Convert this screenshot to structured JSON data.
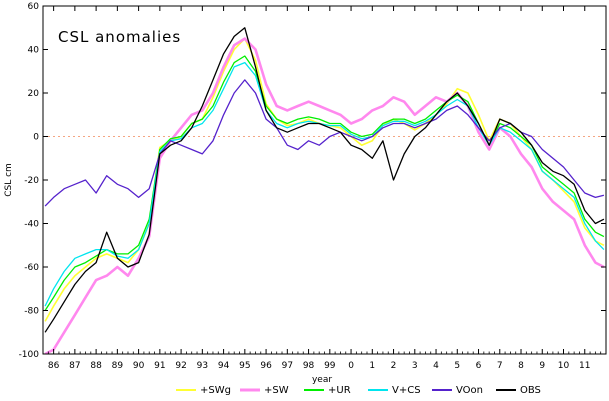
{
  "chart_data": {
    "type": "line",
    "title": "CSL anomalies",
    "xlabel": "year",
    "ylabel": "CSL cm",
    "xlim": [
      1985.5,
      2012.0
    ],
    "ylim": [
      -100,
      60
    ],
    "y_ticks": [
      -100,
      -80,
      -60,
      -40,
      -20,
      0,
      20,
      40,
      60
    ],
    "x_tick_values": [
      1986,
      1987,
      1988,
      1989,
      1990,
      1991,
      1992,
      1993,
      1994,
      1995,
      1996,
      1997,
      1998,
      1999,
      2000,
      2001,
      2002,
      2003,
      2004,
      2005,
      2006,
      2007,
      2008,
      2009,
      2010,
      2011
    ],
    "x_tick_labels": [
      "86",
      "87",
      "88",
      "89",
      "90",
      "91",
      "92",
      "93",
      "94",
      "95",
      "96",
      "97",
      "98",
      "99",
      "0",
      "1",
      "2",
      "3",
      "4",
      "5",
      "6",
      "7",
      "8",
      "9",
      "10",
      "11"
    ],
    "zero_line": {
      "y": 0,
      "color": "#f4a582",
      "style": "dotted"
    },
    "legend_position": "bottom",
    "series": [
      {
        "name": "+SWg",
        "color": "#ffff33",
        "x": [
          1985.6,
          1986,
          1986.5,
          1987,
          1987.5,
          1988,
          1988.5,
          1989,
          1989.5,
          1990,
          1990.5,
          1991,
          1991.5,
          1992,
          1992.5,
          1993,
          1993.5,
          1994,
          1994.5,
          1995,
          1995.5,
          1996,
          1996.5,
          1997,
          1997.5,
          1998,
          1998.5,
          1999,
          1999.5,
          2000,
          2000.5,
          2001,
          2001.5,
          2002,
          2002.5,
          2003,
          2003.5,
          2004,
          2004.5,
          2005,
          2005.5,
          2006,
          2006.5,
          2007,
          2007.5,
          2008,
          2008.5,
          2009,
          2009.5,
          2010,
          2010.5,
          2011,
          2011.5,
          2011.9
        ],
        "y": [
          -85,
          -78,
          -70,
          -64,
          -60,
          -56,
          -54,
          -56,
          -58,
          -52,
          -40,
          -5,
          -2,
          0,
          6,
          8,
          18,
          30,
          40,
          45,
          35,
          15,
          8,
          5,
          6,
          8,
          6,
          5,
          4,
          0,
          -4,
          -2,
          5,
          8,
          6,
          3,
          6,
          10,
          15,
          22,
          20,
          10,
          -2,
          8,
          6,
          0,
          -6,
          -16,
          -20,
          -25,
          -30,
          -42,
          -48,
          -50
        ]
      },
      {
        "name": "+SW",
        "color": "#ff88ee",
        "x": [
          1985.6,
          1986,
          1986.5,
          1987,
          1987.5,
          1988,
          1988.5,
          1989,
          1989.5,
          1990,
          1990.5,
          1991,
          1991.5,
          1992,
          1992.5,
          1993,
          1993.5,
          1994,
          1994.5,
          1995,
          1995.5,
          1996,
          1996.5,
          1997,
          1997.5,
          1998,
          1998.5,
          1999,
          1999.5,
          2000,
          2000.5,
          2001,
          2001.5,
          2002,
          2002.5,
          2003,
          2003.5,
          2004,
          2004.5,
          2005,
          2005.5,
          2006,
          2006.5,
          2007,
          2007.5,
          2008,
          2008.5,
          2009,
          2009.5,
          2010,
          2010.5,
          2011,
          2011.5,
          2011.9
        ],
        "y": [
          -100,
          -98,
          -90,
          -82,
          -74,
          -66,
          -64,
          -60,
          -64,
          -56,
          -46,
          -10,
          -2,
          4,
          10,
          12,
          20,
          32,
          42,
          45,
          40,
          24,
          14,
          12,
          14,
          16,
          14,
          12,
          10,
          6,
          8,
          12,
          14,
          18,
          16,
          10,
          14,
          18,
          16,
          20,
          14,
          2,
          -6,
          4,
          0,
          -8,
          -14,
          -24,
          -30,
          -34,
          -38,
          -50,
          -58,
          -60
        ]
      },
      {
        "name": "+UR",
        "color": "#00ee00",
        "x": [
          1985.6,
          1986,
          1986.5,
          1987,
          1987.5,
          1988,
          1988.5,
          1989,
          1989.5,
          1990,
          1990.5,
          1991,
          1991.5,
          1992,
          1992.5,
          1993,
          1993.5,
          1994,
          1994.5,
          1995,
          1995.5,
          1996,
          1996.5,
          1997,
          1997.5,
          1998,
          1998.5,
          1999,
          1999.5,
          2000,
          2000.5,
          2001,
          2001.5,
          2002,
          2002.5,
          2003,
          2003.5,
          2004,
          2004.5,
          2005,
          2005.5,
          2006,
          2006.5,
          2007,
          2007.5,
          2008,
          2008.5,
          2009,
          2009.5,
          2010,
          2010.5,
          2011,
          2011.5,
          2011.9
        ],
        "y": [
          -80,
          -74,
          -66,
          -60,
          -58,
          -55,
          -52,
          -54,
          -54,
          -50,
          -38,
          -6,
          -1,
          0,
          6,
          8,
          14,
          25,
          34,
          37,
          30,
          14,
          8,
          6,
          8,
          9,
          8,
          6,
          6,
          2,
          0,
          1,
          6,
          8,
          8,
          6,
          8,
          12,
          16,
          19,
          16,
          6,
          -4,
          6,
          4,
          0,
          -4,
          -14,
          -18,
          -22,
          -26,
          -38,
          -44,
          -46
        ]
      },
      {
        "name": "V+CS",
        "color": "#00e5ee",
        "x": [
          1985.6,
          1986,
          1986.5,
          1987,
          1987.5,
          1988,
          1988.5,
          1989,
          1989.5,
          1990,
          1990.5,
          1991,
          1991.5,
          1992,
          1992.5,
          1993,
          1993.5,
          1994,
          1994.5,
          1995,
          1995.5,
          1996,
          1996.5,
          1997,
          1997.5,
          1998,
          1998.5,
          1999,
          1999.5,
          2000,
          2000.5,
          2001,
          2001.5,
          2002,
          2002.5,
          2003,
          2003.5,
          2004,
          2004.5,
          2005,
          2005.5,
          2006,
          2006.5,
          2007,
          2007.5,
          2008,
          2008.5,
          2009,
          2009.5,
          2010,
          2010.5,
          2011,
          2011.5,
          2011.9
        ],
        "y": [
          -78,
          -70,
          -62,
          -56,
          -54,
          -52,
          -52,
          -55,
          -56,
          -52,
          -40,
          -7,
          -2,
          -1,
          4,
          6,
          12,
          22,
          32,
          34,
          28,
          12,
          6,
          4,
          6,
          7,
          6,
          5,
          5,
          1,
          -1,
          0,
          5,
          7,
          7,
          5,
          7,
          10,
          14,
          17,
          14,
          4,
          -4,
          4,
          2,
          -2,
          -6,
          -16,
          -20,
          -24,
          -28,
          -40,
          -48,
          -52
        ]
      },
      {
        "name": "VOon",
        "color": "#5522cc",
        "x": [
          1985.6,
          1986,
          1986.5,
          1987,
          1987.5,
          1988,
          1988.5,
          1989,
          1989.5,
          1990,
          1990.5,
          1991,
          1991.5,
          1992,
          1992.5,
          1993,
          1993.5,
          1994,
          1994.5,
          1995,
          1995.5,
          1996,
          1996.5,
          1997,
          1997.5,
          1998,
          1998.5,
          1999,
          1999.5,
          2000,
          2000.5,
          2001,
          2001.5,
          2002,
          2002.5,
          2003,
          2003.5,
          2004,
          2004.5,
          2005,
          2005.5,
          2006,
          2006.5,
          2007,
          2007.5,
          2008,
          2008.5,
          2009,
          2009.5,
          2010,
          2010.5,
          2011,
          2011.5,
          2011.9
        ],
        "y": [
          -32,
          -28,
          -24,
          -22,
          -20,
          -26,
          -18,
          -22,
          -24,
          -28,
          -24,
          -8,
          -2,
          -4,
          -6,
          -8,
          -2,
          10,
          20,
          26,
          20,
          8,
          4,
          -4,
          -6,
          -2,
          -4,
          0,
          2,
          0,
          -2,
          0,
          4,
          6,
          6,
          4,
          6,
          8,
          12,
          14,
          10,
          4,
          -2,
          4,
          6,
          2,
          0,
          -6,
          -10,
          -14,
          -20,
          -26,
          -28,
          -27
        ]
      },
      {
        "name": "OBS",
        "color": "#000000",
        "x": [
          1985.6,
          1986,
          1986.5,
          1987,
          1987.5,
          1988,
          1988.5,
          1989,
          1989.5,
          1990,
          1990.5,
          1991,
          1991.5,
          1992,
          1992.5,
          1993,
          1993.5,
          1994,
          1994.5,
          1995,
          1995.5,
          1996,
          1996.5,
          1997,
          1997.5,
          1998,
          1998.5,
          1999,
          1999.5,
          2000,
          2000.5,
          2001,
          2001.5,
          2002,
          2002.5,
          2003,
          2003.5,
          2004,
          2004.5,
          2005,
          2005.5,
          2006,
          2006.5,
          2007,
          2007.5,
          2008,
          2008.5,
          2009,
          2009.5,
          2010,
          2010.5,
          2011,
          2011.5,
          2011.9
        ],
        "y": [
          -90,
          -84,
          -76,
          -68,
          -62,
          -58,
          -44,
          -56,
          -60,
          -58,
          -45,
          -8,
          -4,
          -2,
          4,
          14,
          26,
          38,
          46,
          50,
          32,
          12,
          4,
          2,
          4,
          6,
          6,
          4,
          2,
          -4,
          -6,
          -10,
          -2,
          -20,
          -8,
          0,
          4,
          10,
          16,
          20,
          14,
          6,
          -4,
          8,
          6,
          2,
          -4,
          -12,
          -16,
          -18,
          -22,
          -34,
          -40,
          -38
        ]
      }
    ]
  }
}
